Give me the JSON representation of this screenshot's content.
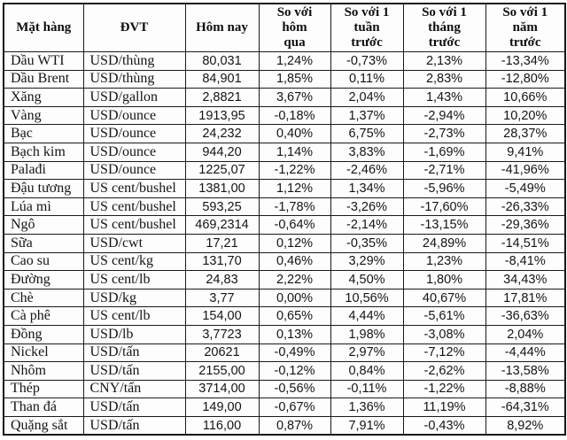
{
  "chart_data": {
    "type": "table",
    "title": "",
    "columns": [
      "Mặt hàng",
      "ĐVT",
      "Hôm nay",
      "So với hôm qua",
      "So với 1 tuần trước",
      "So với 1 tháng trước",
      "So với 1 năm trước"
    ],
    "rows": [
      [
        "Dầu WTI",
        "USD/thùng",
        "80,031",
        "1,24%",
        "-0,73%",
        "2,13%",
        "-13,34%"
      ],
      [
        "Dầu Brent",
        "USD/thùng",
        "84,901",
        "1,85%",
        "0,11%",
        "2,83%",
        "-12,80%"
      ],
      [
        "Xăng",
        "USD/gallon",
        "2,8821",
        "3,67%",
        "2,04%",
        "1,43%",
        "10,66%"
      ],
      [
        "Vàng",
        "USD/ounce",
        "1913,95",
        "-0,18%",
        "1,37%",
        "-2,94%",
        "10,20%"
      ],
      [
        "Bạc",
        "USD/ounce",
        "24,232",
        "0,40%",
        "6,75%",
        "-2,73%",
        "28,37%"
      ],
      [
        "Bạch kim",
        "USD/ounce",
        "944,20",
        "1,14%",
        "3,83%",
        "-1,69%",
        "9,41%"
      ],
      [
        "Palađi",
        "USD/ounce",
        "1225,07",
        "-1,22%",
        "-2,46%",
        "-2,71%",
        "-41,96%"
      ],
      [
        "Đậu tương",
        "US cent/bushel",
        "1381,00",
        "1,12%",
        "1,34%",
        "-5,96%",
        "-5,49%"
      ],
      [
        "Lúa mì",
        "US cent/bushel",
        "593,25",
        "-1,78%",
        "-3,26%",
        "-17,60%",
        "-26,33%"
      ],
      [
        "Ngô",
        "US cent/bushel",
        "469,2314",
        "-0,64%",
        "-2,14%",
        "-13,15%",
        "-29,36%"
      ],
      [
        "Sữa",
        "USD/cwt",
        "17,21",
        "0,12%",
        "-0,35%",
        "24,89%",
        "-14,51%"
      ],
      [
        "Cao su",
        "US cent/kg",
        "131,70",
        "0,46%",
        "3,29%",
        "1,23%",
        "-8,41%"
      ],
      [
        "Đường",
        "US cent/lb",
        "24,83",
        "2,22%",
        "4,50%",
        "1,80%",
        "34,43%"
      ],
      [
        "Chè",
        "USD/kg",
        "3,77",
        "0,00%",
        "10,56%",
        "40,67%",
        "17,81%"
      ],
      [
        "Cà phê",
        "US cent/lb",
        "154,00",
        "0,65%",
        "4,44%",
        "-5,61%",
        "-36,63%"
      ],
      [
        "Đồng",
        "USD/lb",
        "3,7723",
        "0,13%",
        "1,98%",
        "-3,08%",
        "2,04%"
      ],
      [
        "Nickel",
        "USD/tấn",
        "20621",
        "-0,49%",
        "2,97%",
        "-7,12%",
        "-4,44%"
      ],
      [
        "Nhôm",
        "USD/tấn",
        "2155,00",
        "-0,12%",
        "0,84%",
        "-2,62%",
        "-13,58%"
      ],
      [
        "Thép",
        "CNY/tấn",
        "3714,00",
        "-0,56%",
        "-0,11%",
        "-1,22%",
        "-8,88%"
      ],
      [
        "Than đá",
        "USD/tấn",
        "149,00",
        "-0,67%",
        "1,36%",
        "11,19%",
        "-64,31%"
      ],
      [
        "Quặng sắt",
        "USD/tấn",
        "116,00",
        "0,87%",
        "7,91%",
        "-0,43%",
        "8,92%"
      ]
    ]
  },
  "header_display": [
    "Mặt hàng",
    "ĐVT",
    "Hôm nay",
    "So với\nhôm\nqua",
    "So với 1\ntuần\ntrước",
    "So với 1\ntháng\ntrước",
    "So với 1\nnăm\ntrước"
  ],
  "colors": {
    "border": "#161616",
    "text": "#141414",
    "background": "#ffffff"
  }
}
